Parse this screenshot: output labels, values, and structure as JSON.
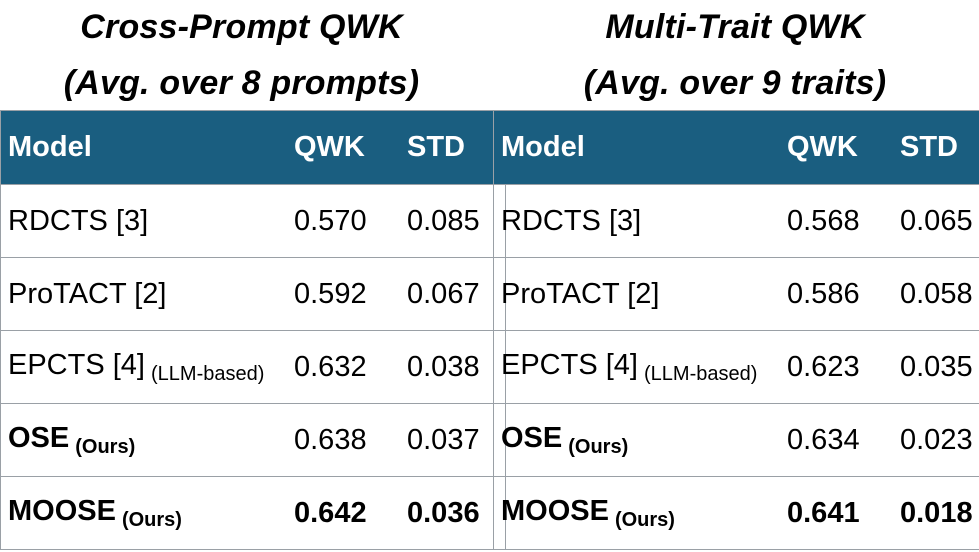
{
  "left": {
    "title_line1": "Cross-Prompt QWK",
    "title_line2": "(Avg. over 8 prompts)",
    "headers": {
      "model": "Model",
      "qwk": "QWK",
      "std": "STD"
    },
    "rows": [
      {
        "model": "RDCTS [3]",
        "note": "",
        "qwk": "0.570",
        "std": "0.085"
      },
      {
        "model": "ProTACT [2]",
        "note": "",
        "qwk": "0.592",
        "std": "0.067"
      },
      {
        "model": "EPCTS [4]",
        "note": "(LLM-based)",
        "qwk": "0.632",
        "std": "0.038"
      },
      {
        "model": "OSE",
        "note": "(Ours)",
        "qwk": "0.638",
        "std": "0.037"
      },
      {
        "model": "MOOSE",
        "note": "(Ours)",
        "qwk": "0.642",
        "std": "0.036"
      }
    ]
  },
  "right": {
    "title_line1": "Multi-Trait QWK",
    "title_line2": "(Avg. over 9 traits)",
    "headers": {
      "model": "Model",
      "qwk": "QWK",
      "std": "STD"
    },
    "rows": [
      {
        "model": "RDCTS [3]",
        "note": "",
        "qwk": "0.568",
        "std": "0.065"
      },
      {
        "model": "ProTACT [2]",
        "note": "",
        "qwk": "0.586",
        "std": "0.058"
      },
      {
        "model": "EPCTS [4]",
        "note": "(LLM-based)",
        "qwk": "0.623",
        "std": "0.035"
      },
      {
        "model": "OSE",
        "note": "(Ours)",
        "qwk": "0.634",
        "std": "0.023"
      },
      {
        "model": "MOOSE",
        "note": "(Ours)",
        "qwk": "0.641",
        "std": "0.018"
      }
    ]
  }
}
